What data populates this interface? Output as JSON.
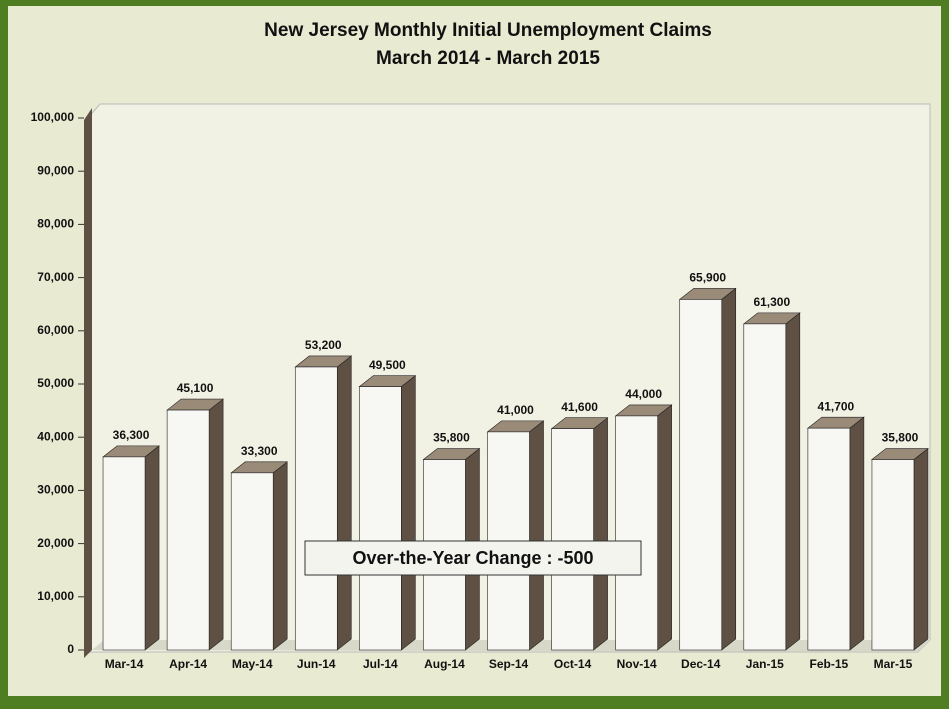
{
  "chart_data": {
    "type": "bar",
    "title": "New Jersey Monthly Initial Unemployment Claims",
    "subtitle": "March 2014 - March 2015",
    "categories": [
      "Mar-14",
      "Apr-14",
      "May-14",
      "Jun-14",
      "Jul-14",
      "Aug-14",
      "Sep-14",
      "Oct-14",
      "Nov-14",
      "Dec-14",
      "Jan-15",
      "Feb-15",
      "Mar-15"
    ],
    "values": [
      36300,
      45100,
      33300,
      53200,
      49500,
      35800,
      41000,
      41600,
      44000,
      65900,
      61300,
      41700,
      35800
    ],
    "value_labels": [
      "36,300",
      "45,100",
      "33,300",
      "53,200",
      "49,500",
      "35,800",
      "41,000",
      "41,600",
      "44,000",
      "65,900",
      "61,300",
      "41,700",
      "35,800"
    ],
    "color": "#f7f7f4",
    "side_color": "#5e5043",
    "ylim": [
      0,
      100000
    ],
    "yticks": [
      0,
      {
        "value": 10000,
        "label": "10,000"
      },
      {
        "value": 20000,
        "label": "20,000"
      },
      {
        "value": 30000,
        "label": "30,000"
      },
      {
        "value": 40000,
        "label": "40,000"
      },
      {
        "value": 50000,
        "label": "50,000"
      },
      {
        "value": 60000,
        "label": "60,000"
      },
      {
        "value": 70000,
        "label": "70,000"
      },
      {
        "value": 80000,
        "label": "80,000"
      },
      {
        "value": 90000,
        "label": "90,000"
      },
      {
        "value": 100000,
        "label": "100,000"
      }
    ],
    "grid": false,
    "annotation": "Over-the-Year Change : -500"
  }
}
